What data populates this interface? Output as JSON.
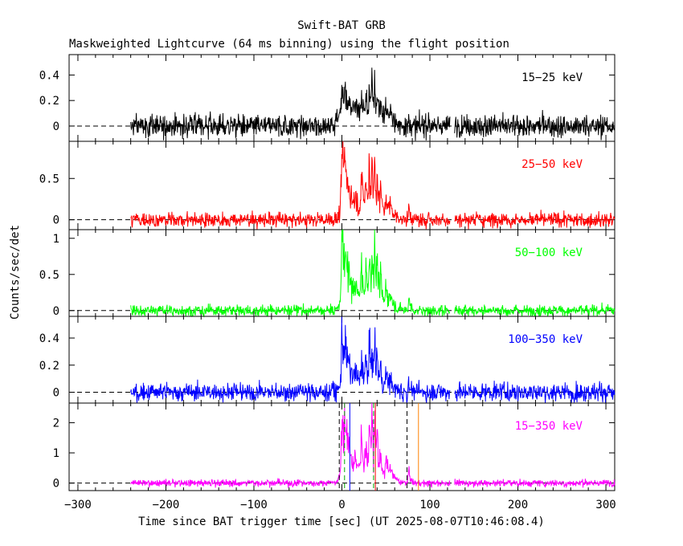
{
  "chart_data": {
    "type": "line",
    "title": "Swift-BAT GRB",
    "subtitle": "Maskweighted Lightcurve (64 ms binning) using the flight position",
    "xlabel": "Time since BAT trigger time [sec] (UT 2025-08-07T10:46:08.4)",
    "ylabel": "Counts/sec/det",
    "xlim": [
      -310,
      310
    ],
    "x_ticks": [
      -300,
      -200,
      -100,
      0,
      100,
      200,
      300
    ],
    "x_tick_labels": [
      "−300",
      "−200",
      "−100",
      "0",
      "100",
      "200",
      "300"
    ],
    "data_range": [
      -240,
      310
    ],
    "data_gap": [
      123,
      128
    ],
    "pulses": [
      {
        "t": 0,
        "w": 2.0,
        "a": 1.0
      },
      {
        "t": 3,
        "w": 3.0,
        "a": 0.55
      },
      {
        "t": 8,
        "w": 6.0,
        "a": 0.25
      },
      {
        "t": 15,
        "w": 2.0,
        "a": 0.2
      },
      {
        "t": 22,
        "w": 1.5,
        "a": 0.55
      },
      {
        "t": 27,
        "w": 1.5,
        "a": 0.5
      },
      {
        "t": 31,
        "w": 1.0,
        "a": 0.9
      },
      {
        "t": 34,
        "w": 0.8,
        "a": 1.0
      },
      {
        "t": 37,
        "w": 1.0,
        "a": 0.95
      },
      {
        "t": 40,
        "w": 1.5,
        "a": 0.55
      },
      {
        "t": 44,
        "w": 1.0,
        "a": 0.45
      },
      {
        "t": 50,
        "w": 2.0,
        "a": 0.35
      },
      {
        "t": 55,
        "w": 3.0,
        "a": 0.15
      },
      {
        "t": 76,
        "w": 1.0,
        "a": 0.25
      }
    ],
    "series": [
      {
        "name": "15−25 keV",
        "color": "#000000",
        "ylim": [
          -0.12,
          0.56
        ],
        "y_ticks": [
          0,
          0.2,
          0.4
        ],
        "y_tick_labels": [
          "0",
          "0.2",
          "0.4"
        ],
        "noise": 0.045,
        "peak": 0.26,
        "bump": 0.05
      },
      {
        "name": "25−50 keV",
        "color": "#ff0000",
        "ylim": [
          -0.12,
          0.95
        ],
        "y_ticks": [
          0,
          0.5
        ],
        "y_tick_labels": [
          "0",
          "0.5"
        ],
        "noise": 0.045,
        "peak": 0.75,
        "bump": 0.0
      },
      {
        "name": "50−100 keV",
        "color": "#00ff00",
        "ylim": [
          -0.08,
          1.12
        ],
        "y_ticks": [
          0,
          0.5,
          1
        ],
        "y_tick_labels": [
          "0",
          "0.5",
          "1"
        ],
        "noise": 0.04,
        "peak": 0.95,
        "bump": 0.0
      },
      {
        "name": "100−350 keV",
        "color": "#0000ff",
        "ylim": [
          -0.08,
          0.56
        ],
        "y_ticks": [
          0,
          0.2,
          0.4
        ],
        "y_tick_labels": [
          "0",
          "0.2",
          "0.4"
        ],
        "noise": 0.035,
        "peak": 0.38,
        "bump": 0.0
      },
      {
        "name": "15−350 keV",
        "color": "#ff00ff",
        "ylim": [
          -0.25,
          2.65
        ],
        "y_ticks": [
          0,
          1,
          2
        ],
        "y_tick_labels": [
          "0",
          "1",
          "2"
        ],
        "noise": 0.06,
        "peak": 2.2,
        "bump": 0.0
      }
    ],
    "markers": [
      {
        "t": -3,
        "style": "dashed",
        "color": "#000000"
      },
      {
        "t": 3,
        "style": "dashed",
        "color": "#00aa00"
      },
      {
        "t": 9,
        "style": "solid",
        "color": "#0000ff"
      },
      {
        "t": 36,
        "style": "dashed",
        "color": "#00aa00"
      },
      {
        "t": 38,
        "style": "solid",
        "color": "#ff0000"
      },
      {
        "t": 74,
        "style": "dashed",
        "color": "#000000"
      },
      {
        "t": 87,
        "style": "solid",
        "color": "#ff8000"
      }
    ]
  }
}
